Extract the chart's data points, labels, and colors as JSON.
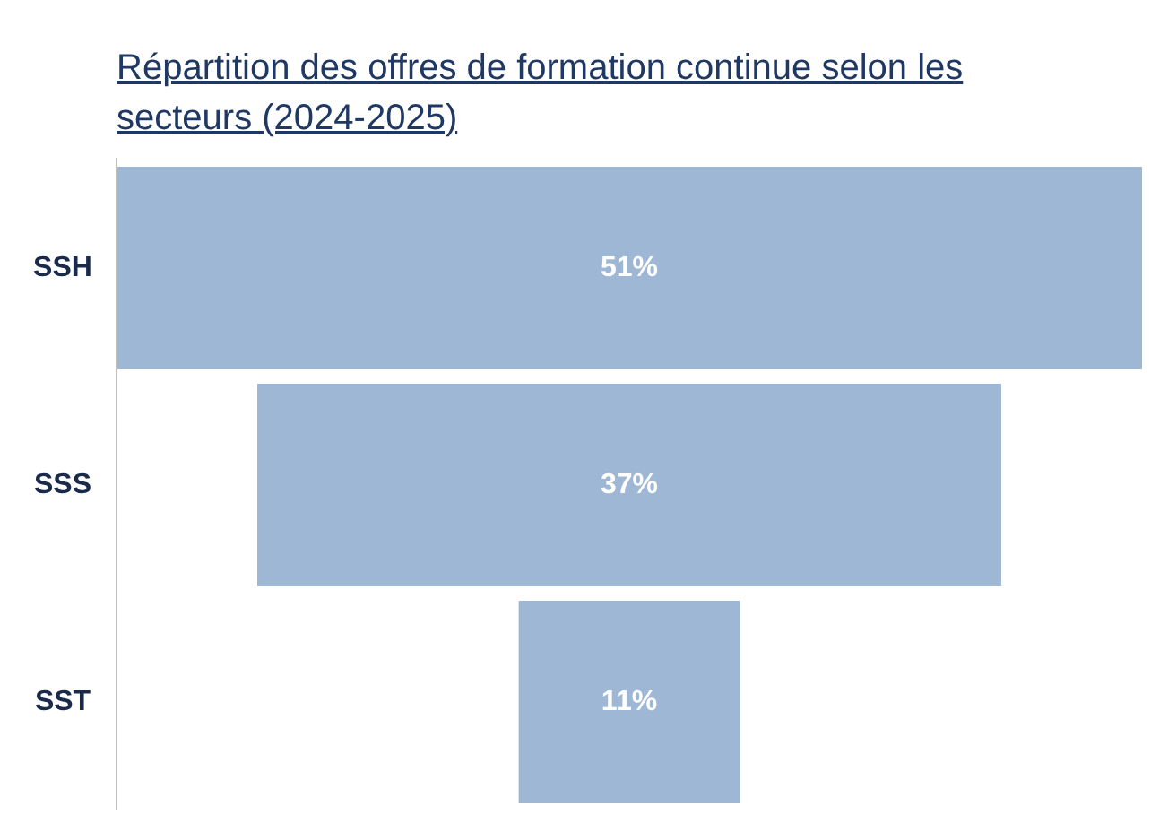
{
  "chart_data": {
    "type": "other",
    "title": "Répartition des offres de formation continue selon les secteurs (2024-2025)",
    "categories": [
      "SSH",
      "SSS",
      "SST"
    ],
    "values": [
      51,
      37,
      11
    ],
    "value_labels": [
      "51%",
      "37%",
      "11%"
    ],
    "color": "#9db7d5"
  }
}
